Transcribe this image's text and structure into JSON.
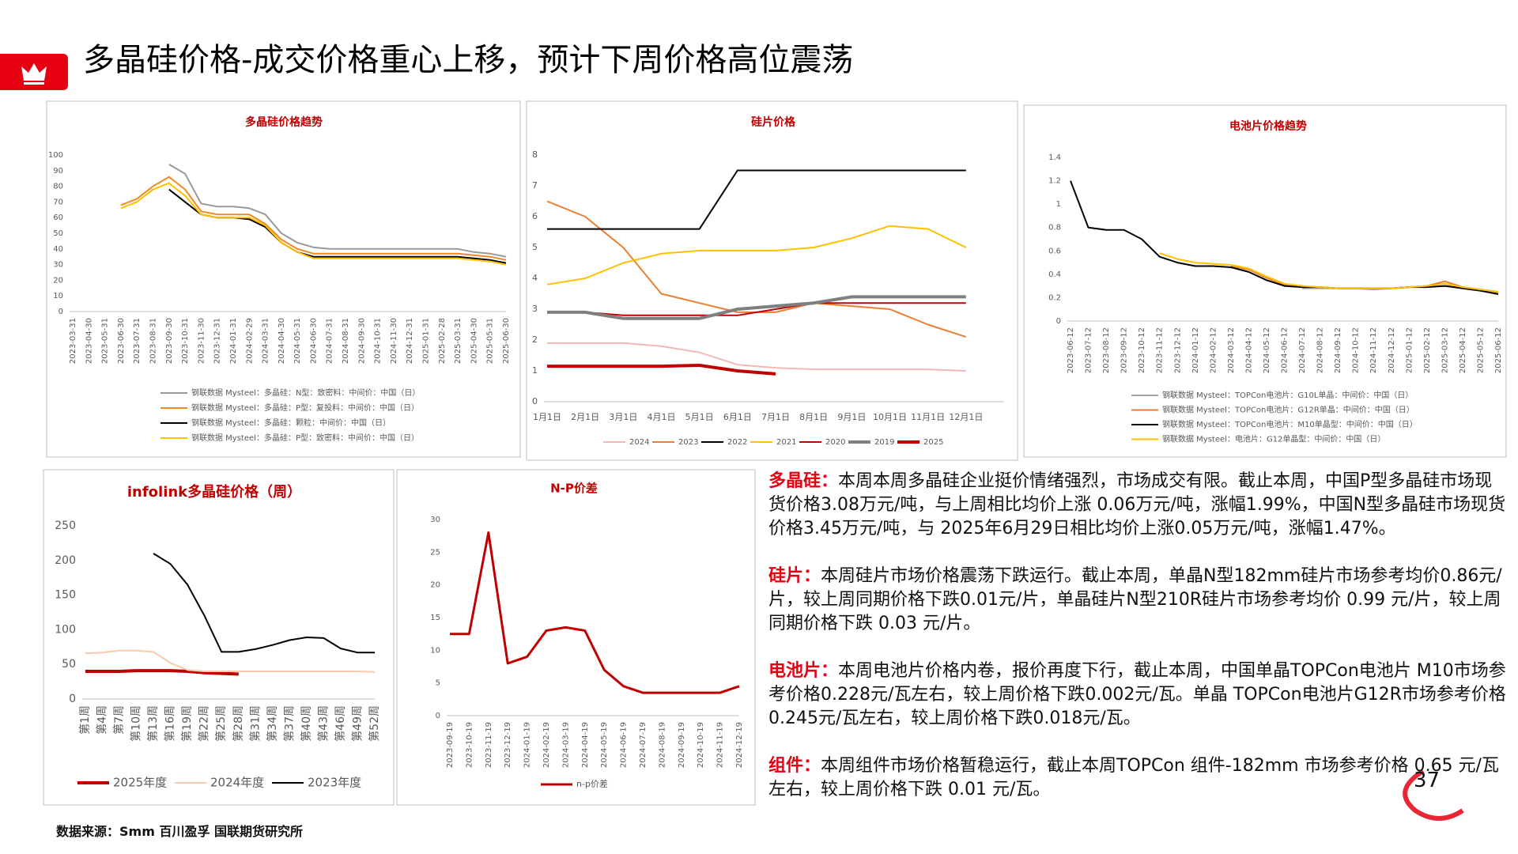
{
  "header": {
    "title": "多晶硅价格-成交价格重心上移，预计下周价格高位震荡"
  },
  "chart_data": [
    {
      "type": "line",
      "title": "多晶硅价格趋势",
      "legend": "bottom",
      "grid": false,
      "categories": [
        "2023-03-31",
        "2023-04-30",
        "2023-05-31",
        "2023-06-30",
        "2023-07-31",
        "2023-08-31",
        "2023-09-30",
        "2023-10-31",
        "2023-11-30",
        "2023-12-31",
        "2024-01-31",
        "2024-02-29",
        "2024-03-31",
        "2024-04-30",
        "2024-05-31",
        "2024-06-30",
        "2024-07-31",
        "2024-08-31",
        "2024-09-30",
        "2024-10-31",
        "2024-11-30",
        "2024-12-31",
        "2025-01-31",
        "2025-02-28",
        "2025-03-31",
        "2025-04-30",
        "2025-05-31",
        "2025-06-30"
      ],
      "ylim": [
        0,
        100
      ],
      "yticks": [
        0,
        10,
        20,
        30,
        40,
        50,
        60,
        70,
        80,
        90,
        100
      ],
      "series": [
        {
          "name": "钢联数据 Mysteel：多晶硅：N型：致密料：中间价：中国（日）",
          "color": "#999999",
          "line_width": 2,
          "values": [
            null,
            null,
            null,
            null,
            null,
            null,
            94,
            88,
            69,
            67,
            67,
            66,
            62,
            50,
            44,
            41,
            40,
            40,
            40,
            40,
            40,
            40,
            40,
            40,
            40,
            38,
            37,
            35
          ]
        },
        {
          "name": "钢联数据 Mysteel：多晶硅：P型：复投料：中间价：中国（日）",
          "color": "#f08a24",
          "line_width": 2,
          "values": [
            null,
            null,
            null,
            68,
            72,
            80,
            86,
            78,
            64,
            62,
            62,
            62,
            56,
            46,
            40,
            37,
            37,
            37,
            37,
            37,
            37,
            37,
            37,
            37,
            37,
            36,
            35,
            33
          ]
        },
        {
          "name": "钢联数据 Mysteel：多晶硅：颗粒：中间价：中国（日）",
          "color": "#000000",
          "line_width": 2,
          "values": [
            null,
            null,
            null,
            null,
            null,
            null,
            78,
            70,
            62,
            60,
            60,
            59,
            54,
            44,
            38,
            35,
            35,
            35,
            35,
            35,
            35,
            35,
            35,
            35,
            35,
            34,
            33,
            31
          ]
        },
        {
          "name": "钢联数据 Mysteel：多晶硅：P型：致密料：中间价：中国（日）",
          "color": "#ffc000",
          "line_width": 2,
          "values": [
            null,
            null,
            null,
            66,
            70,
            78,
            82,
            74,
            62,
            60,
            60,
            60,
            55,
            44,
            38,
            34,
            34,
            34,
            34,
            34,
            34,
            34,
            34,
            34,
            34,
            33,
            32,
            30
          ]
        }
      ]
    },
    {
      "type": "line",
      "title": "硅片价格",
      "legend": "bottom",
      "grid": false,
      "categories": [
        "1月1日",
        "2月1日",
        "3月1日",
        "4月1日",
        "5月1日",
        "6月1日",
        "7月1日",
        "8月1日",
        "9月1日",
        "10月1日",
        "11月1日",
        "12月1日"
      ],
      "ylim": [
        0,
        8
      ],
      "yticks": [
        0,
        1,
        2,
        3,
        4,
        5,
        6,
        7,
        8
      ],
      "series": [
        {
          "name": "2024",
          "color": "#f4b6b6",
          "line_width": 2,
          "values": [
            1.9,
            1.9,
            1.9,
            1.8,
            1.6,
            1.2,
            1.1,
            1.05,
            1.05,
            1.05,
            1.05,
            1.0
          ]
        },
        {
          "name": "2023",
          "color": "#ed7d31",
          "line_width": 2,
          "values": [
            6.5,
            6.0,
            5.0,
            3.5,
            3.2,
            2.9,
            2.9,
            3.2,
            3.1,
            3.0,
            2.5,
            2.1
          ]
        },
        {
          "name": "2022",
          "color": "#000000",
          "line_width": 2,
          "values": [
            5.6,
            5.6,
            5.6,
            5.6,
            5.6,
            7.5,
            7.5,
            7.5,
            7.5,
            7.5,
            7.5,
            7.5
          ]
        },
        {
          "name": "2021",
          "color": "#ffc000",
          "line_width": 2,
          "values": [
            3.8,
            4.0,
            4.5,
            4.8,
            4.9,
            4.9,
            4.9,
            5.0,
            5.3,
            5.7,
            5.6,
            5.0
          ]
        },
        {
          "name": "2020",
          "color": "#c00000",
          "line_width": 2,
          "values": [
            2.9,
            2.9,
            2.8,
            2.8,
            2.8,
            2.8,
            3.0,
            3.2,
            3.2,
            3.2,
            3.2,
            3.2
          ]
        },
        {
          "name": "2019",
          "color": "#7f7f7f",
          "line_width": 4,
          "values": [
            2.9,
            2.9,
            2.7,
            2.7,
            2.7,
            3.0,
            3.1,
            3.2,
            3.4,
            3.4,
            3.4,
            3.4
          ]
        },
        {
          "name": "2025",
          "color": "#c00000",
          "line_width": 4,
          "values": [
            1.15,
            1.15,
            1.15,
            1.15,
            1.18,
            1.0,
            0.9,
            null,
            null,
            null,
            null,
            null
          ]
        }
      ]
    },
    {
      "type": "line",
      "title": "电池片价格趋势",
      "legend": "bottom",
      "grid": false,
      "categories": [
        "2023-06-12",
        "2023-07-12",
        "2023-08-12",
        "2023-09-12",
        "2023-10-12",
        "2023-11-12",
        "2023-12-12",
        "2024-01-12",
        "2024-02-12",
        "2024-03-12",
        "2024-04-12",
        "2024-05-12",
        "2024-06-12",
        "2024-07-12",
        "2024-08-12",
        "2024-09-12",
        "2024-10-12",
        "2024-11-12",
        "2024-12-12",
        "2025-01-12",
        "2025-02-12",
        "2025-03-12",
        "2025-04-12",
        "2025-05-12",
        "2025-06-12"
      ],
      "ylim": [
        0,
        1.4
      ],
      "yticks": [
        0,
        0.2,
        0.4,
        0.6,
        0.8,
        1,
        1.2,
        1.4
      ],
      "series": [
        {
          "name": "钢联数据 Mysteel：TOPCon电池片：G10L单晶：中间价：中国（日）",
          "color": "#a5a5a5",
          "line_width": 2,
          "values": [
            null,
            null,
            null,
            null,
            null,
            null,
            null,
            null,
            null,
            null,
            null,
            null,
            null,
            0.28,
            0.28,
            0.28,
            0.28,
            0.27,
            0.28,
            0.29,
            0.3,
            0.32,
            0.28,
            0.26,
            0.24
          ]
        },
        {
          "name": "钢联数据 Mysteel：TOPCon电池片：G12R单晶：中间价：中国（日）",
          "color": "#ed7d31",
          "line_width": 2,
          "values": [
            null,
            null,
            null,
            null,
            null,
            null,
            null,
            null,
            null,
            0.47,
            0.44,
            0.37,
            0.31,
            0.29,
            0.29,
            0.28,
            0.28,
            0.28,
            0.28,
            0.29,
            0.3,
            0.34,
            0.29,
            0.27,
            0.25
          ]
        },
        {
          "name": "钢联数据 Mysteel：TOPCon电池片：M10单晶型：中间价：中国（日）",
          "color": "#000000",
          "line_width": 2,
          "values": [
            1.2,
            0.8,
            0.78,
            0.78,
            0.7,
            0.55,
            0.5,
            0.47,
            0.47,
            0.46,
            0.42,
            0.35,
            0.3,
            0.29,
            0.29,
            0.28,
            0.28,
            0.28,
            0.28,
            0.29,
            0.29,
            0.3,
            0.28,
            0.26,
            0.23
          ]
        },
        {
          "name": "钢联数据 Mysteel：电池片：G12单晶型：中间价：中国（日）",
          "color": "#ffc000",
          "line_width": 2,
          "values": [
            null,
            null,
            null,
            null,
            null,
            0.58,
            0.53,
            0.5,
            0.49,
            0.48,
            0.45,
            0.38,
            0.32,
            0.3,
            0.29,
            0.28,
            0.28,
            0.28,
            0.28,
            0.29,
            0.3,
            0.32,
            0.29,
            0.27,
            0.25
          ]
        }
      ]
    },
    {
      "type": "line",
      "title": "infolink多晶硅价格（周）",
      "legend": "bottom",
      "grid": false,
      "categories": [
        "第1周",
        "第4周",
        "第7周",
        "第10周",
        "第13周",
        "第16周",
        "第19周",
        "第22周",
        "第25周",
        "第28周",
        "第31周",
        "第34周",
        "第37周",
        "第40周",
        "第43周",
        "第46周",
        "第49周",
        "第52周"
      ],
      "ylim": [
        0,
        250
      ],
      "yticks": [
        0,
        50,
        100,
        150,
        200,
        250
      ],
      "series": [
        {
          "name": "2025年度",
          "color": "#c00000",
          "line_width": 4,
          "values": [
            40,
            40,
            40,
            41,
            41,
            41,
            40,
            38,
            37,
            36,
            null,
            null,
            null,
            null,
            null,
            null,
            null,
            null
          ]
        },
        {
          "name": "2024年度",
          "color": "#f8cbad",
          "line_width": 2,
          "values": [
            66,
            67,
            70,
            70,
            68,
            52,
            42,
            40,
            40,
            40,
            40,
            40,
            40,
            40,
            40,
            40,
            40,
            39
          ]
        },
        {
          "name": "2023年度",
          "color": "#000000",
          "line_width": 2,
          "values": [
            null,
            null,
            null,
            null,
            210,
            195,
            165,
            120,
            68,
            68,
            72,
            78,
            85,
            89,
            88,
            73,
            67,
            67
          ]
        }
      ]
    },
    {
      "type": "line",
      "title": "N-P价差",
      "legend": "bottom",
      "grid": false,
      "categories": [
        "2023-09-19",
        "2023-10-19",
        "2023-11-19",
        "2023-12-19",
        "2024-01-19",
        "2024-02-19",
        "2024-03-19",
        "2024-04-19",
        "2024-05-19",
        "2024-06-19",
        "2024-07-19",
        "2024-08-19",
        "2024-09-19",
        "2024-10-19",
        "2024-11-19",
        "2024-12-19"
      ],
      "ylim": [
        0,
        30
      ],
      "yticks": [
        0,
        5,
        10,
        15,
        20,
        25,
        30
      ],
      "series": [
        {
          "name": "n-p价差",
          "color": "#c00000",
          "line_width": 3,
          "values": [
            12.5,
            12.5,
            28,
            8,
            9,
            13,
            13.5,
            13,
            7,
            4.5,
            3.5,
            3.5,
            3.5,
            3.5,
            3.5,
            4.5
          ]
        }
      ]
    }
  ],
  "paragraphs": [
    {
      "label": "多晶硅：",
      "text": "本周本周多晶硅企业挺价情绪强烈，市场成交有限。截止本周，中国P型多晶硅市场现货价格3.08万元/吨，与上周相比均价上涨 0.06万元/吨，涨幅1.99%，中国N型多晶硅市场现货价格3.45万元/吨，与 2025年6月29日相比均价上涨0.05万元/吨，涨幅1.47%。"
    },
    {
      "label": "硅片：",
      "text": "本周硅片市场价格震荡下跌运行。截止本周，单晶N型182mm硅片市场参考均价0.86元/片，较上周同期价格下跌0.01元/片，单晶硅片N型210R硅片市场参考均价 0.99 元/片，较上周同期价格下跌 0.03 元/片。"
    },
    {
      "label": "电池片：",
      "text": "本周电池片价格内卷，报价再度下行，截止本周，中国单晶TOPCon电池片 M10市场参考价格0.228元/瓦左右，较上周价格下跌0.002元/瓦。单晶 TOPCon电池片G12R市场参考价格0.245元/瓦左右，较上周价格下跌0.018元/瓦。"
    },
    {
      "label": "组件：",
      "text": "本周组件市场价格暂稳运行，截止本周TOPCon 组件-182mm 市场参考价格 0.65 元/瓦左右，较上周价格下跌 0.01 元/瓦。"
    }
  ],
  "source": "数据来源：Smm 百川盈孚 国联期货研究所",
  "page_number": "37"
}
